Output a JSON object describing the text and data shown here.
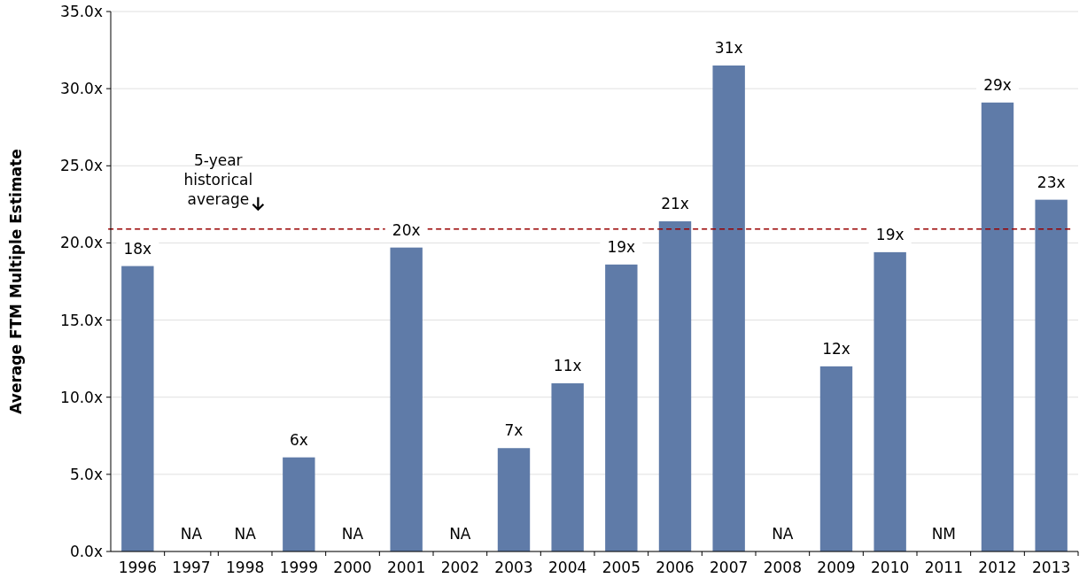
{
  "chart_data": {
    "type": "bar",
    "ylabel": "Average FTM Multiple Estimate",
    "categories": [
      "1996",
      "1997",
      "1998",
      "1999",
      "2000",
      "2001",
      "2002",
      "2003",
      "2004",
      "2005",
      "2006",
      "2007",
      "2008",
      "2009",
      "2010",
      "2011",
      "2012",
      "2013"
    ],
    "values": [
      18.5,
      null,
      null,
      6.1,
      null,
      19.7,
      null,
      6.7,
      10.9,
      18.6,
      21.4,
      31.5,
      null,
      12.0,
      19.4,
      null,
      29.1,
      22.8
    ],
    "value_labels": [
      "18x",
      "NA",
      "NA",
      "6x",
      "NA",
      "20x",
      "NA",
      "7x",
      "11x",
      "19x",
      "21x",
      "31x",
      "NA",
      "12x",
      "19x",
      "NM",
      "29x",
      "23x"
    ],
    "color": "#5f7ba8",
    "ylim": [
      0,
      35
    ],
    "yticks": [
      {
        "value": 0,
        "label": "0.0x"
      },
      {
        "value": 5,
        "label": "5.0x"
      },
      {
        "value": 10,
        "label": "10.0x"
      },
      {
        "value": 15,
        "label": "15.0x"
      },
      {
        "value": 20,
        "label": "20.0x"
      },
      {
        "value": 25,
        "label": "25.0x"
      },
      {
        "value": 30,
        "label": "30.0x"
      },
      {
        "value": 35,
        "label": "35.0x"
      }
    ],
    "grid": "y",
    "ref_lines": [
      {
        "axis": "y",
        "value": 20.9,
        "label": "5-year historical average",
        "color": "#990000",
        "line_style": "dashed"
      }
    ]
  }
}
